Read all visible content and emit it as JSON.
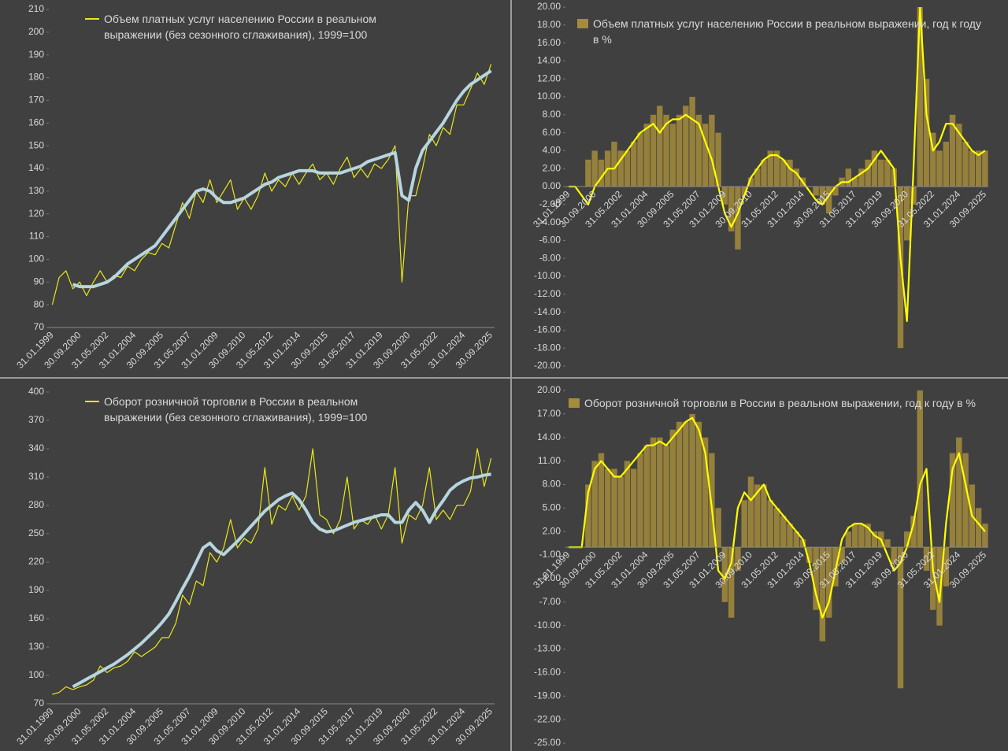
{
  "chart_data": [
    {
      "type": "line",
      "categories": [
        "31.01.1999",
        null,
        null,
        null,
        "30.09.2000",
        null,
        null,
        null,
        "31.05.2002",
        null,
        null,
        null,
        "31.01.2004",
        null,
        null,
        null,
        "30.09.2005",
        null,
        null,
        null,
        "31.05.2007",
        null,
        null,
        null,
        "31.01.2009",
        null,
        null,
        null,
        "30.09.2010",
        null,
        null,
        null,
        "31.05.2012",
        null,
        null,
        null,
        "31.01.2014",
        null,
        null,
        null,
        "30.09.2015",
        null,
        null,
        null,
        "31.05.2017",
        null,
        null,
        null,
        "31.01.2019",
        null,
        null,
        null,
        "30.09.2020",
        null,
        null,
        null,
        "31.05.2022",
        null,
        null,
        null,
        "31.01.2024",
        null,
        null,
        null,
        "30.09.2025"
      ],
      "series": [
        {
          "name": "Объем платных услуг населению России в реальном выражении (без сезонного сглаживания), 1999=100",
          "color": "#e8e81a",
          "values": [
            80,
            92,
            95,
            87,
            90,
            84,
            90,
            95,
            90,
            93,
            92,
            97,
            95,
            100,
            103,
            102,
            107,
            105,
            115,
            125,
            118,
            130,
            125,
            135,
            125,
            130,
            135,
            122,
            127,
            122,
            128,
            138,
            130,
            135,
            132,
            138,
            133,
            138,
            142,
            135,
            138,
            133,
            140,
            145,
            136,
            140,
            136,
            142,
            140,
            144,
            150,
            90,
            128,
            128,
            140,
            155,
            150,
            158,
            155,
            168,
            168,
            175,
            182,
            177,
            186
          ]
        },
        {
          "color": "#b7d5de",
          "values": [
            null,
            null,
            null,
            89,
            88,
            88,
            88,
            89,
            90,
            92,
            95,
            98,
            100,
            102,
            104,
            106,
            110,
            114,
            118,
            122,
            126,
            130,
            131,
            130,
            127,
            125,
            125,
            126,
            127,
            129,
            131,
            133,
            134,
            136,
            137,
            138,
            139,
            139,
            139,
            138,
            138,
            138,
            138,
            139,
            140,
            141,
            143,
            144,
            145,
            146,
            147,
            128,
            126,
            140,
            148,
            152,
            156,
            160,
            165,
            170,
            174,
            177,
            179,
            181,
            183
          ]
        }
      ],
      "ylim": [
        70,
        210
      ],
      "yticks": [
        210,
        200,
        190,
        180,
        170,
        160,
        150,
        140,
        130,
        120,
        110,
        100,
        90,
        80,
        70
      ]
    },
    {
      "type": "bar",
      "categories": [
        "31.01.1999",
        null,
        null,
        null,
        "30.09.2000",
        null,
        null,
        null,
        "31.05.2002",
        null,
        null,
        null,
        "31.01.2004",
        null,
        null,
        null,
        "30.09.2005",
        null,
        null,
        null,
        "31.05.2007",
        null,
        null,
        null,
        "31.01.2009",
        null,
        null,
        null,
        "30.09.2010",
        null,
        null,
        null,
        "31.05.2012",
        null,
        null,
        null,
        "31.01.2014",
        null,
        null,
        null,
        "30.09.2015",
        null,
        null,
        null,
        "31.05.2017",
        null,
        null,
        null,
        "31.01.2019",
        null,
        null,
        null,
        "30.09.2020",
        null,
        null,
        null,
        "31.05.2022",
        null,
        null,
        null,
        "31.01.2024",
        null,
        null,
        null,
        "30.09.2025"
      ],
      "series": [
        {
          "name": "Объем платных услуг населению России в реальном выражении, год к году в %",
          "color": "#a58c3c",
          "values": [
            0,
            0,
            0,
            3,
            4,
            3,
            4,
            5,
            4,
            4,
            5,
            6,
            7,
            8,
            9,
            8,
            7,
            8,
            9,
            10,
            8,
            7,
            8,
            6,
            -2,
            -5,
            -7,
            -1,
            1,
            2,
            3,
            4,
            4,
            3,
            3,
            2,
            1,
            0,
            -1,
            -2,
            -3,
            -1,
            1,
            2,
            1,
            2,
            3,
            4,
            3,
            3,
            2,
            -18,
            -6,
            -2,
            20,
            12,
            6,
            4,
            5,
            8,
            7,
            5,
            4,
            4,
            4
          ]
        },
        {
          "type": "line",
          "color": "#ffff00",
          "values": [
            0,
            0,
            -1,
            -2,
            0,
            1,
            2,
            2,
            3,
            4,
            5,
            6,
            6.5,
            7,
            6,
            7,
            7.5,
            7.5,
            8,
            7.5,
            7,
            5,
            3,
            0,
            -3,
            -4.5,
            -3,
            -1,
            1,
            2,
            3,
            3.5,
            3.5,
            3,
            2,
            1.5,
            0.5,
            -0.5,
            -1.5,
            -2,
            -1,
            0,
            0.5,
            0.5,
            1,
            1.5,
            2,
            3,
            4,
            3,
            2,
            -8,
            -15,
            2,
            20,
            8,
            4,
            5,
            7,
            7,
            6,
            5,
            4,
            3.5,
            4
          ]
        }
      ],
      "ylim": [
        -20,
        20
      ],
      "yticks": [
        {
          "value": 20,
          "label": "20.00"
        },
        {
          "value": 18,
          "label": "18.00"
        },
        {
          "value": 16,
          "label": "16.00"
        },
        {
          "value": 14,
          "label": "14.00"
        },
        {
          "value": 12,
          "label": "12.00"
        },
        {
          "value": 10,
          "label": "10.00"
        },
        {
          "value": 8,
          "label": "8.00"
        },
        {
          "value": 6,
          "label": "6.00"
        },
        {
          "value": 4,
          "label": "4.00"
        },
        {
          "value": 2,
          "label": "2.00"
        },
        {
          "value": 0,
          "label": "0.00"
        },
        {
          "value": -2,
          "label": "-2.00"
        },
        {
          "value": -4,
          "label": "-4.00"
        },
        {
          "value": -6,
          "label": "-6.00"
        },
        {
          "value": -8,
          "label": "-8.00"
        },
        {
          "value": -10,
          "label": "-10.00"
        },
        {
          "value": -12,
          "label": "-12.00"
        },
        {
          "value": -14,
          "label": "-14.00"
        },
        {
          "value": -16,
          "label": "-16.00"
        },
        {
          "value": -18,
          "label": "-18.00"
        },
        {
          "value": -20,
          "label": "-20.00"
        }
      ]
    },
    {
      "type": "line",
      "categories": [
        "31.01.1999",
        null,
        null,
        null,
        "30.09.2000",
        null,
        null,
        null,
        "31.05.2002",
        null,
        null,
        null,
        "31.01.2004",
        null,
        null,
        null,
        "30.09.2005",
        null,
        null,
        null,
        "31.05.2007",
        null,
        null,
        null,
        "31.01.2009",
        null,
        null,
        null,
        "30.09.2010",
        null,
        null,
        null,
        "31.05.2012",
        null,
        null,
        null,
        "31.01.2014",
        null,
        null,
        null,
        "30.09.2015",
        null,
        null,
        null,
        "31.05.2017",
        null,
        null,
        null,
        "31.01.2019",
        null,
        null,
        null,
        "30.09.2020",
        null,
        null,
        null,
        "31.05.2022",
        null,
        null,
        null,
        "31.01.2024",
        null,
        null,
        null,
        "30.09.2025"
      ],
      "series": [
        {
          "name": "Оборот розничной торговли в России в реальном выражении (без сезонного сглаживания), 1999=100",
          "color": "#e8e81a",
          "values": [
            80,
            82,
            88,
            85,
            88,
            90,
            95,
            110,
            103,
            108,
            110,
            115,
            125,
            120,
            125,
            130,
            140,
            140,
            155,
            185,
            175,
            200,
            195,
            230,
            220,
            235,
            265,
            235,
            245,
            240,
            255,
            320,
            260,
            280,
            275,
            290,
            275,
            290,
            340,
            270,
            265,
            250,
            265,
            310,
            255,
            265,
            260,
            270,
            255,
            270,
            320,
            240,
            270,
            265,
            280,
            320,
            265,
            275,
            265,
            280,
            280,
            295,
            340,
            300,
            330
          ]
        },
        {
          "color": "#b7d5de",
          "values": [
            null,
            null,
            null,
            88,
            92,
            96,
            100,
            104,
            108,
            112,
            117,
            122,
            128,
            134,
            141,
            148,
            156,
            165,
            178,
            192,
            205,
            220,
            235,
            240,
            232,
            228,
            235,
            242,
            250,
            258,
            266,
            274,
            280,
            286,
            290,
            293,
            286,
            275,
            262,
            255,
            252,
            253,
            256,
            259,
            262,
            264,
            266,
            268,
            270,
            270,
            262,
            262,
            275,
            283,
            275,
            262,
            275,
            285,
            296,
            302,
            306,
            309,
            310,
            312,
            313
          ]
        }
      ],
      "ylim": [
        70,
        400
      ],
      "yticks": [
        400,
        370,
        340,
        310,
        280,
        250,
        220,
        190,
        160,
        130,
        100,
        70
      ]
    },
    {
      "type": "bar",
      "categories": [
        "31.01.1999",
        null,
        null,
        null,
        "30.09.2000",
        null,
        null,
        null,
        "31.05.2002",
        null,
        null,
        null,
        "31.01.2004",
        null,
        null,
        null,
        "30.09.2005",
        null,
        null,
        null,
        "31.05.2007",
        null,
        null,
        null,
        "31.01.2009",
        null,
        null,
        null,
        "30.09.2010",
        null,
        null,
        null,
        "31.05.2012",
        null,
        null,
        null,
        "31.01.2014",
        null,
        null,
        null,
        "30.09.2015",
        null,
        null,
        null,
        "31.05.2017",
        null,
        null,
        null,
        "31.01.2019",
        null,
        null,
        null,
        "30.09.2020",
        null,
        null,
        null,
        "31.05.2022",
        null,
        null,
        null,
        "31.01.2024",
        null,
        null,
        null,
        "30.09.2025"
      ],
      "series": [
        {
          "name": "Оборот розничной торговли в России в реальном выражении, год к году в %",
          "color": "#a58c3c",
          "values": [
            0,
            0,
            0,
            8,
            11,
            12,
            10,
            10,
            9,
            11,
            10,
            12,
            13,
            14,
            14,
            13,
            15,
            16,
            16,
            17,
            16,
            14,
            12,
            5,
            -7,
            -9,
            -3,
            6,
            9,
            8,
            8,
            6,
            5,
            4,
            3,
            2,
            1,
            -2,
            -8,
            -12,
            -9,
            -5,
            -2,
            2,
            3,
            3,
            3,
            2,
            2,
            1,
            -2,
            -18,
            2,
            4,
            20,
            -3,
            -8,
            -10,
            -5,
            12,
            14,
            12,
            8,
            5,
            3
          ]
        },
        {
          "type": "line",
          "color": "#ffff00",
          "values": [
            0,
            0,
            0,
            7,
            10,
            11,
            10,
            9,
            9,
            10,
            11,
            12,
            13,
            13,
            13.5,
            13,
            14,
            15,
            16,
            16.5,
            15,
            12,
            5,
            -3,
            -4,
            -2,
            5,
            7,
            6,
            7,
            8,
            6,
            5,
            4,
            3,
            2,
            1,
            -2,
            -6,
            -9,
            -7,
            -3,
            1,
            2.5,
            3,
            3,
            2.5,
            1.5,
            1,
            -1,
            -3,
            -2,
            0,
            3,
            8,
            10,
            -3,
            -7,
            3,
            10,
            12,
            8,
            4,
            3,
            2
          ]
        }
      ],
      "ylim": [
        -25,
        20
      ],
      "yticks": [
        {
          "value": 20,
          "label": "20.00"
        },
        {
          "value": 17,
          "label": "17.00"
        },
        {
          "value": 14,
          "label": "14.00"
        },
        {
          "value": 11,
          "label": "11.00"
        },
        {
          "value": 8,
          "label": "8.00"
        },
        {
          "value": 5,
          "label": "5.00"
        },
        {
          "value": 2,
          "label": "2.00"
        },
        {
          "value": -1,
          "label": "-1.00"
        },
        {
          "value": -4,
          "label": "-4.00"
        },
        {
          "value": -7,
          "label": "-7.00"
        },
        {
          "value": -10,
          "label": "-10.00"
        },
        {
          "value": -13,
          "label": "-13.00"
        },
        {
          "value": -16,
          "label": "-16.00"
        },
        {
          "value": -19,
          "label": "-19.00"
        },
        {
          "value": -22,
          "label": "-22.00"
        },
        {
          "value": -25,
          "label": "-25.00"
        }
      ]
    }
  ]
}
